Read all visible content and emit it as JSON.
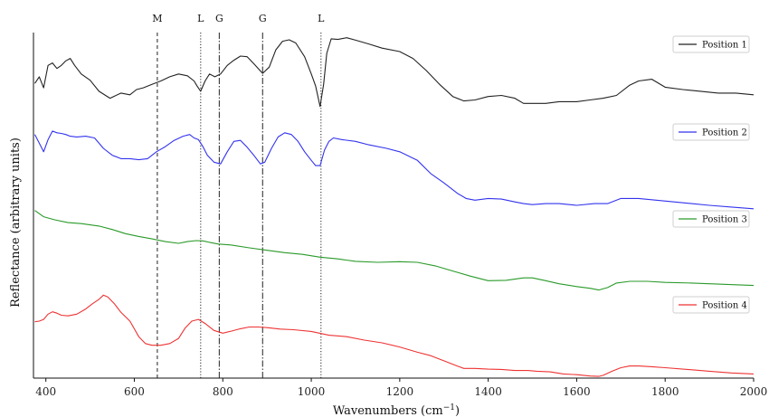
{
  "chart_data": {
    "type": "line",
    "xlabel": "Wavenumbers (cm",
    "xlabel_sup": "−1",
    "xlabel_suffix": ")",
    "ylabel": "Reflectance (arbitrary units)",
    "xlim": [
      372,
      2000
    ],
    "ylim": [
      0,
      1
    ],
    "xticks": [
      400,
      600,
      800,
      1000,
      1200,
      1400,
      1600,
      1800,
      2000
    ],
    "yticks": [],
    "grid": false,
    "legend_placement": "right",
    "markers": [
      {
        "label": "M",
        "x": 652,
        "style": "dashed"
      },
      {
        "label": "L",
        "x": 750,
        "style": "dotted"
      },
      {
        "label": "G",
        "x": 792,
        "style": "dashdot"
      },
      {
        "label": "G",
        "x": 890,
        "style": "dashdot"
      },
      {
        "label": "L",
        "x": 1022,
        "style": "dotted"
      }
    ],
    "series": [
      {
        "name": "Position 1",
        "color": "#222222",
        "x": [
          375,
          385,
          395,
          405,
          415,
          425,
          435,
          445,
          455,
          465,
          480,
          500,
          520,
          545,
          570,
          590,
          605,
          620,
          640,
          660,
          680,
          700,
          720,
          735,
          742,
          750,
          760,
          770,
          782,
          795,
          810,
          825,
          840,
          855,
          870,
          890,
          905,
          920,
          935,
          950,
          965,
          985,
          1000,
          1010,
          1020,
          1028,
          1035,
          1045,
          1060,
          1080,
          1100,
          1130,
          1160,
          1200,
          1230,
          1260,
          1290,
          1320,
          1345,
          1370,
          1400,
          1430,
          1460,
          1480,
          1500,
          1530,
          1560,
          1600,
          1630,
          1660,
          1690,
          1720,
          1740,
          1770,
          1800,
          1840,
          1880,
          1920,
          1960,
          2000
        ],
        "y": [
          0.853,
          0.872,
          0.84,
          0.905,
          0.912,
          0.896,
          0.905,
          0.918,
          0.925,
          0.905,
          0.88,
          0.862,
          0.83,
          0.81,
          0.825,
          0.82,
          0.835,
          0.84,
          0.85,
          0.86,
          0.872,
          0.88,
          0.875,
          0.86,
          0.845,
          0.83,
          0.86,
          0.88,
          0.872,
          0.88,
          0.905,
          0.92,
          0.932,
          0.93,
          0.91,
          0.882,
          0.9,
          0.95,
          0.975,
          0.979,
          0.97,
          0.93,
          0.88,
          0.845,
          0.786,
          0.85,
          0.94,
          0.982,
          0.98,
          0.985,
          0.978,
          0.967,
          0.955,
          0.945,
          0.925,
          0.89,
          0.85,
          0.815,
          0.802,
          0.805,
          0.815,
          0.818,
          0.81,
          0.795,
          0.795,
          0.795,
          0.8,
          0.8,
          0.805,
          0.81,
          0.818,
          0.848,
          0.86,
          0.865,
          0.842,
          0.835,
          0.83,
          0.825,
          0.825,
          0.82
        ]
      },
      {
        "name": "Position 2",
        "color": "#3333ee",
        "x": [
          375,
          385,
          395,
          405,
          415,
          425,
          435,
          445,
          455,
          470,
          490,
          510,
          530,
          550,
          570,
          590,
          610,
          630,
          650,
          670,
          690,
          710,
          725,
          735,
          745,
          755,
          765,
          780,
          795,
          810,
          825,
          840,
          855,
          870,
          885,
          895,
          910,
          925,
          940,
          955,
          970,
          985,
          1000,
          1010,
          1020,
          1030,
          1040,
          1050,
          1070,
          1100,
          1130,
          1170,
          1200,
          1240,
          1270,
          1300,
          1330,
          1350,
          1370,
          1400,
          1430,
          1460,
          1480,
          1500,
          1530,
          1560,
          1600,
          1640,
          1670,
          1700,
          1740,
          1780,
          1820,
          1860,
          1900,
          1950,
          2000
        ],
        "y": [
          0.705,
          0.68,
          0.655,
          0.69,
          0.715,
          0.71,
          0.708,
          0.705,
          0.7,
          0.698,
          0.7,
          0.695,
          0.665,
          0.645,
          0.635,
          0.635,
          0.632,
          0.635,
          0.655,
          0.67,
          0.688,
          0.7,
          0.705,
          0.695,
          0.69,
          0.67,
          0.645,
          0.625,
          0.62,
          0.655,
          0.685,
          0.688,
          0.668,
          0.645,
          0.62,
          0.625,
          0.665,
          0.698,
          0.71,
          0.705,
          0.685,
          0.655,
          0.63,
          0.615,
          0.615,
          0.66,
          0.685,
          0.695,
          0.69,
          0.685,
          0.675,
          0.665,
          0.655,
          0.63,
          0.592,
          0.565,
          0.535,
          0.52,
          0.515,
          0.52,
          0.518,
          0.51,
          0.505,
          0.502,
          0.505,
          0.505,
          0.5,
          0.505,
          0.505,
          0.52,
          0.52,
          0.515,
          0.51,
          0.505,
          0.5,
          0.495,
          0.49
        ]
      },
      {
        "name": "Position 3",
        "color": "#2a9a2a",
        "x": [
          375,
          395,
          420,
          450,
          480,
          520,
          550,
          580,
          610,
          640,
          670,
          700,
          720,
          740,
          755,
          770,
          790,
          820,
          860,
          900,
          940,
          980,
          1020,
          1060,
          1100,
          1150,
          1200,
          1240,
          1280,
          1320,
          1360,
          1400,
          1440,
          1480,
          1500,
          1530,
          1560,
          1600,
          1630,
          1650,
          1670,
          1690,
          1720,
          1760,
          1800,
          1860,
          1920,
          2000
        ],
        "y": [
          0.485,
          0.467,
          0.458,
          0.45,
          0.447,
          0.44,
          0.43,
          0.418,
          0.41,
          0.403,
          0.395,
          0.39,
          0.395,
          0.398,
          0.397,
          0.393,
          0.388,
          0.385,
          0.377,
          0.37,
          0.363,
          0.358,
          0.35,
          0.345,
          0.338,
          0.335,
          0.337,
          0.335,
          0.325,
          0.31,
          0.295,
          0.282,
          0.283,
          0.29,
          0.29,
          0.282,
          0.273,
          0.265,
          0.26,
          0.255,
          0.262,
          0.275,
          0.28,
          0.28,
          0.277,
          0.275,
          0.272,
          0.268
        ]
      },
      {
        "name": "Position 4",
        "color": "#ee3333",
        "x": [
          375,
          385,
          395,
          405,
          415,
          425,
          435,
          450,
          470,
          490,
          505,
          520,
          530,
          540,
          555,
          570,
          590,
          610,
          625,
          640,
          660,
          680,
          700,
          715,
          730,
          745,
          760,
          780,
          800,
          820,
          840,
          860,
          880,
          900,
          930,
          960,
          1000,
          1040,
          1080,
          1120,
          1160,
          1200,
          1240,
          1270,
          1300,
          1330,
          1345,
          1370,
          1400,
          1430,
          1460,
          1490,
          1510,
          1540,
          1570,
          1600,
          1630,
          1650,
          1660,
          1680,
          1700,
          1720,
          1740,
          1770,
          1800,
          1850,
          1900,
          1950,
          2000
        ],
        "y": [
          0.163,
          0.165,
          0.17,
          0.185,
          0.192,
          0.188,
          0.182,
          0.18,
          0.185,
          0.2,
          0.215,
          0.228,
          0.24,
          0.235,
          0.215,
          0.19,
          0.165,
          0.12,
          0.1,
          0.095,
          0.095,
          0.1,
          0.115,
          0.145,
          0.165,
          0.17,
          0.158,
          0.138,
          0.13,
          0.136,
          0.143,
          0.148,
          0.148,
          0.146,
          0.142,
          0.14,
          0.135,
          0.124,
          0.12,
          0.11,
          0.102,
          0.09,
          0.075,
          0.065,
          0.05,
          0.035,
          0.028,
          0.028,
          0.026,
          0.025,
          0.022,
          0.022,
          0.02,
          0.018,
          0.012,
          0.01,
          0.006,
          0.005,
          0.008,
          0.02,
          0.03,
          0.035,
          0.035,
          0.033,
          0.03,
          0.025,
          0.02,
          0.015,
          0.012
        ]
      }
    ]
  }
}
